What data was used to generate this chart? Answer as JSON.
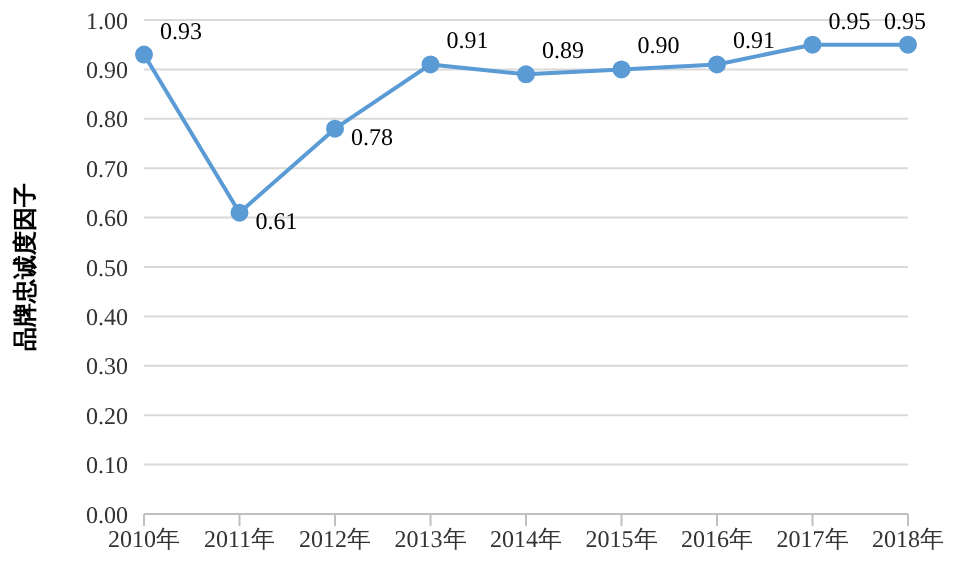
{
  "chart_data": {
    "type": "line",
    "ylabel": "品牌忠诚度因子",
    "categories": [
      "2010年",
      "2011年",
      "2012年",
      "2013年",
      "2014年",
      "2015年",
      "2016年",
      "2017年",
      "2018年"
    ],
    "series": [
      {
        "color": "#5b9bd5",
        "values": [
          0.93,
          0.61,
          0.78,
          0.91,
          0.89,
          0.9,
          0.91,
          0.95,
          0.95
        ],
        "value_labels": [
          "0.93",
          "0.61",
          "0.78",
          "0.91",
          "0.89",
          "0.90",
          "0.91",
          "0.95",
          "0.95"
        ]
      }
    ],
    "ylim": [
      0,
      1
    ],
    "yticks": [
      {
        "value": 0,
        "label": "0.00"
      },
      {
        "value": 0.1,
        "label": "0.10"
      },
      {
        "value": 0.2,
        "label": "0.20"
      },
      {
        "value": 0.3,
        "label": "0.30"
      },
      {
        "value": 0.4,
        "label": "0.40"
      },
      {
        "value": 0.5,
        "label": "0.50"
      },
      {
        "value": 0.6,
        "label": "0.60"
      },
      {
        "value": 0.7,
        "label": "0.70"
      },
      {
        "value": 0.8,
        "label": "0.80"
      },
      {
        "value": 0.9,
        "label": "0.90"
      },
      {
        "value": 1,
        "label": "1.00"
      }
    ],
    "grid": "y",
    "marker": "circle",
    "line_style": "solid"
  }
}
